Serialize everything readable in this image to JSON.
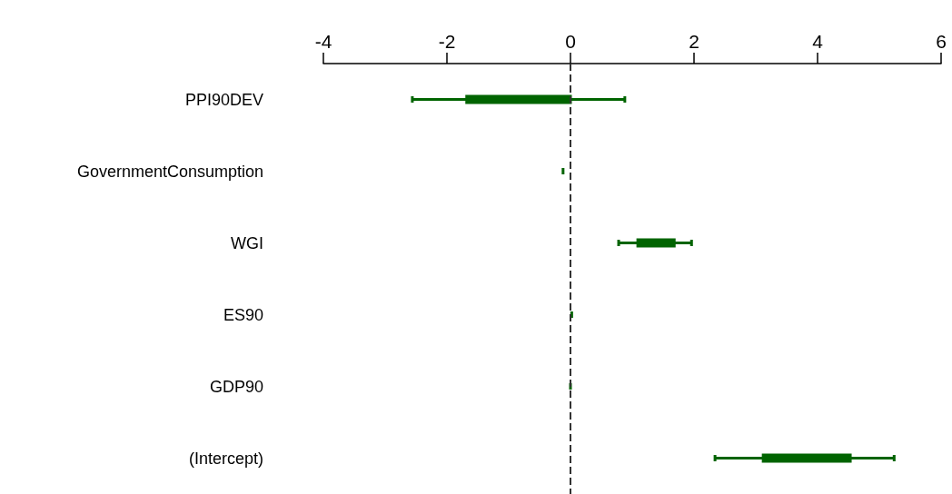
{
  "chart_data": {
    "type": "box",
    "orientation": "horizontal",
    "categories": [
      "PPI90DEV",
      "GovernmentConsumption",
      "WGI",
      "ES90",
      "GDP90",
      "(Intercept)"
    ],
    "series": [
      {
        "color": "#006400",
        "boxes": [
          {
            "low": -2.56,
            "q1": -1.68,
            "median": -0.85,
            "q3": 0.0,
            "high": 0.88
          },
          {
            "low": -0.12,
            "q1": -0.12,
            "median": -0.12,
            "q3": -0.12,
            "high": -0.12
          },
          {
            "low": 0.78,
            "q1": 1.09,
            "median": 1.34,
            "q3": 1.68,
            "high": 1.96
          },
          {
            "low": 0.02,
            "q1": 0.02,
            "median": 0.02,
            "q3": 0.02,
            "high": 0.02
          },
          {
            "low": 0.0,
            "q1": 0.0,
            "median": 0.0,
            "q3": 0.0,
            "high": 0.0
          },
          {
            "low": 2.34,
            "q1": 3.12,
            "median": 3.78,
            "q3": 4.53,
            "high": 5.24
          }
        ]
      }
    ],
    "xlim": [
      -4,
      6
    ],
    "xticks": [
      -4,
      -2,
      0,
      2,
      4,
      6
    ],
    "ref_lines": [
      {
        "axis": "x",
        "value": 0,
        "line_style": "dashed",
        "color": "#333333"
      }
    ],
    "grid": false
  }
}
